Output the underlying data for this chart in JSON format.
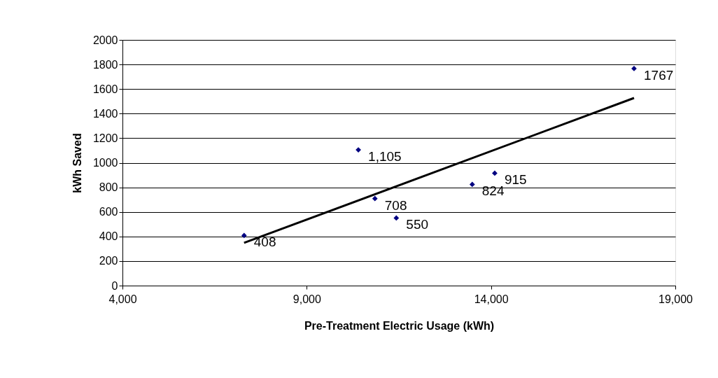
{
  "chart_data": {
    "type": "scatter",
    "xlabel": "Pre-Treatment Electric Usage (kWh)",
    "ylabel": "kWh Saved",
    "xlim": [
      4000,
      19000
    ],
    "xticks": [
      {
        "value": 4000,
        "label": "4,000"
      },
      {
        "value": 9000,
        "label": "9,000"
      },
      {
        "value": 14000,
        "label": "14,000"
      },
      {
        "value": 19000,
        "label": "19,000"
      }
    ],
    "ylim": [
      0,
      2000
    ],
    "yticks": [
      0,
      200,
      400,
      600,
      800,
      1000,
      1200,
      1400,
      1600,
      1800,
      2000
    ],
    "grid": "y",
    "legend": false,
    "marker": "diamond",
    "series": [
      {
        "color": "#000080",
        "x": [
          7300,
          10400,
          10850,
          11430,
          13490,
          14100,
          17880
        ],
        "values": [
          408,
          1105,
          708,
          550,
          824,
          915,
          1767
        ],
        "value_labels": [
          "408",
          "1,105",
          "708",
          "550",
          "824",
          "915",
          "1767"
        ]
      },
      {
        "type": "line",
        "marker": "none",
        "color": "#000000",
        "x": [
          7300,
          17880
        ],
        "values": [
          348,
          1527
        ]
      }
    ]
  }
}
